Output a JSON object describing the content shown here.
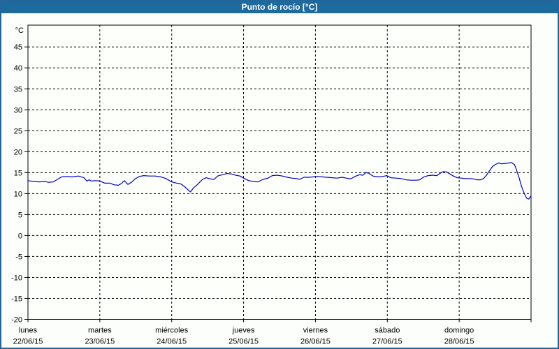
{
  "window": {
    "title": "Punto de rocío [°C]",
    "titlebar_color": "#1d6a9e",
    "frame_color": "#24659a",
    "background": "#fcfefb"
  },
  "chart_data": {
    "type": "line",
    "title": "Punto de rocío [°C]",
    "y_axis_unit": "°C",
    "ylim": [
      -20,
      50.2
    ],
    "y_ticks": [
      45,
      40,
      35,
      30,
      25,
      20,
      15,
      10,
      5,
      0,
      -5,
      -10,
      -15,
      -20
    ],
    "grid": "dashed",
    "grid_color": "#000000",
    "line_color": "#0000c8",
    "legend_position": "none",
    "days": [
      {
        "name": "lunes",
        "date": "22/06/15"
      },
      {
        "name": "martes",
        "date": "23/06/15"
      },
      {
        "name": "miércoles",
        "date": "24/06/15"
      },
      {
        "name": "jueves",
        "date": "25/06/15"
      },
      {
        "name": "viernes",
        "date": "26/06/15"
      },
      {
        "name": "sábado",
        "date": "27/06/15"
      },
      {
        "name": "domingo",
        "date": "28/06/15"
      }
    ],
    "series": [
      {
        "name": "Punto de rocío",
        "x_unit": "days since 22/06/15 00:00",
        "x": [
          0.0,
          0.08,
          0.16,
          0.23,
          0.29,
          0.35,
          0.41,
          0.47,
          0.54,
          0.62,
          0.7,
          0.78,
          0.82,
          0.85,
          0.88,
          0.94,
          1.0,
          1.07,
          1.14,
          1.2,
          1.26,
          1.3,
          1.34,
          1.39,
          1.44,
          1.49,
          1.55,
          1.61,
          1.69,
          1.77,
          1.85,
          1.92,
          2.0,
          2.07,
          2.13,
          2.19,
          2.24,
          2.26,
          2.3,
          2.36,
          2.43,
          2.48,
          2.54,
          2.59,
          2.64,
          2.7,
          2.77,
          2.83,
          2.89,
          2.95,
          3.0,
          3.07,
          3.14,
          3.2,
          3.27,
          3.34,
          3.4,
          3.47,
          3.54,
          3.61,
          3.67,
          3.74,
          3.78,
          3.84,
          3.91,
          3.97,
          4.03,
          4.09,
          4.16,
          4.23,
          4.3,
          4.37,
          4.43,
          4.49,
          4.55,
          4.61,
          4.66,
          4.7,
          4.74,
          4.8,
          4.87,
          4.94,
          4.99,
          5.05,
          5.12,
          5.19,
          5.26,
          5.33,
          5.4,
          5.45,
          5.51,
          5.57,
          5.63,
          5.69,
          5.73,
          5.77,
          5.82,
          5.87,
          5.92,
          5.97,
          6.03,
          6.08,
          6.14,
          6.2,
          6.25,
          6.3,
          6.34,
          6.38,
          6.42,
          6.46,
          6.51,
          6.55,
          6.59,
          6.64,
          6.69,
          6.73,
          6.77,
          6.79,
          6.83,
          6.87,
          6.91,
          6.94,
          6.97,
          6.99,
          7.0
        ],
        "values": [
          13.1,
          12.9,
          12.8,
          12.9,
          12.7,
          12.8,
          13.4,
          14.0,
          14.1,
          14.0,
          14.2,
          13.8,
          13.0,
          13.3,
          13.0,
          13.1,
          13.0,
          12.5,
          12.5,
          12.1,
          12.0,
          12.4,
          13.1,
          12.2,
          12.7,
          13.5,
          14.1,
          14.3,
          14.2,
          14.2,
          14.0,
          13.6,
          12.8,
          12.5,
          12.3,
          11.5,
          10.7,
          10.4,
          11.3,
          12.2,
          13.4,
          13.8,
          13.5,
          13.4,
          14.2,
          14.5,
          14.8,
          14.7,
          14.4,
          14.2,
          13.7,
          13.1,
          12.9,
          12.8,
          13.4,
          13.7,
          14.3,
          14.4,
          14.2,
          13.9,
          13.7,
          13.6,
          13.4,
          13.9,
          13.9,
          14.0,
          14.1,
          14.0,
          13.9,
          13.8,
          13.7,
          13.9,
          13.7,
          13.5,
          14.1,
          14.5,
          14.4,
          15.0,
          14.9,
          14.2,
          14.0,
          14.1,
          14.3,
          13.8,
          13.7,
          13.6,
          13.3,
          13.2,
          13.2,
          13.3,
          14.0,
          14.3,
          14.4,
          14.3,
          14.8,
          15.2,
          15.2,
          14.7,
          14.2,
          13.8,
          13.7,
          13.6,
          13.6,
          13.5,
          13.3,
          13.3,
          13.6,
          14.4,
          15.4,
          16.4,
          17.0,
          17.3,
          17.1,
          17.2,
          17.3,
          17.4,
          16.9,
          16.0,
          14.0,
          11.6,
          9.9,
          8.9,
          8.7,
          9.3,
          9.4
        ]
      }
    ]
  }
}
